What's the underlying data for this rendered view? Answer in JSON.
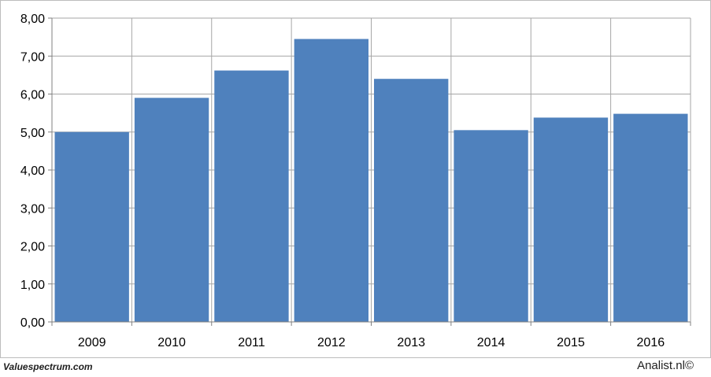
{
  "chart_data": {
    "type": "bar",
    "categories": [
      "2009",
      "2010",
      "2011",
      "2012",
      "2013",
      "2014",
      "2015",
      "2016"
    ],
    "values": [
      5.0,
      5.9,
      6.62,
      7.45,
      6.4,
      5.05,
      5.38,
      5.48
    ],
    "ylim": [
      0,
      8
    ],
    "yticks": [
      "0,00",
      "1,00",
      "2,00",
      "3,00",
      "4,00",
      "5,00",
      "6,00",
      "7,00",
      "8,00"
    ],
    "grid": true,
    "legend": "none",
    "bar_color": "#4f81bd",
    "grid_color": "#a6a6a6"
  },
  "footer": {
    "left": "Valuespectrum.com",
    "right": "Analist.nl©"
  }
}
